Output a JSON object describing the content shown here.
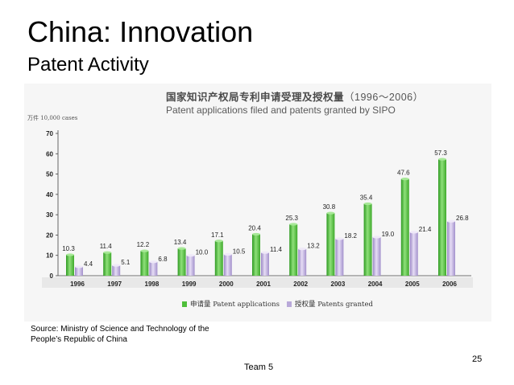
{
  "slide": {
    "title": "China: Innovation",
    "subtitle": "Patent Activity",
    "source_line1": "Source: Ministry of Science and Technology of the",
    "source_line2": "People’s Republic of China",
    "footer": "Team 5",
    "page_number": "25"
  },
  "chart_data": {
    "type": "bar",
    "title_cn": "国家知识产权局专利申请受理及授权量",
    "title_year_range": "（1996～2006）",
    "title_en": "Patent applications filed and patents granted by SIPO",
    "ylabel": "万件 10,000 cases",
    "xlabel": "",
    "ylim": [
      0,
      70
    ],
    "yticks": [
      0,
      10,
      20,
      30,
      40,
      50,
      60,
      70
    ],
    "grid": false,
    "legend_position": "bottom",
    "categories": [
      "1996",
      "1997",
      "1998",
      "1999",
      "2000",
      "2001",
      "2002",
      "2003",
      "2004",
      "2005",
      "2006"
    ],
    "series": [
      {
        "name": "申请量 Patent applications",
        "color": "#4fbf3a",
        "values": [
          10.3,
          11.4,
          12.2,
          13.4,
          17.1,
          20.4,
          25.3,
          30.8,
          35.4,
          47.6,
          57.3
        ]
      },
      {
        "name": "授权量 Patents granted",
        "color": "#b9a9d9",
        "values": [
          4.4,
          5.1,
          6.8,
          10.0,
          10.5,
          11.4,
          13.2,
          18.2,
          19.0,
          21.4,
          26.8
        ]
      }
    ],
    "data_labels": [
      [
        "10.3",
        "11.4",
        "12.2",
        "13.4",
        "17.1",
        "20.4",
        "25.3",
        "30.8",
        "35.4",
        "47.6",
        "57.3"
      ],
      [
        "4.4",
        "5.1",
        "6.8",
        "10.0",
        "10.5",
        "11.4",
        "13.2",
        "18.2",
        "19.0",
        "21.4",
        "26.8"
      ]
    ]
  }
}
